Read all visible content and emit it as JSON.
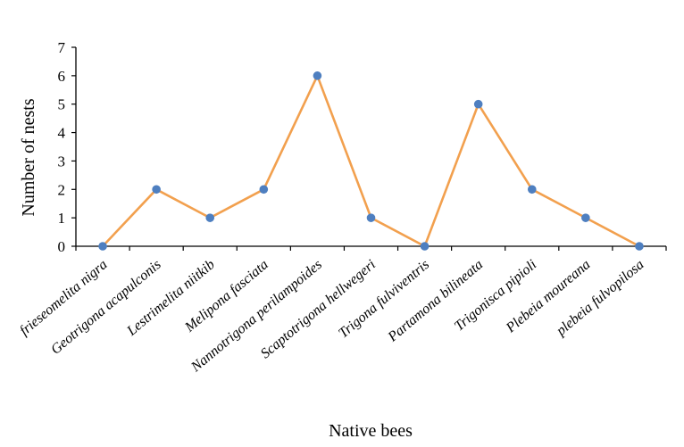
{
  "chart_data": {
    "type": "line",
    "categories": [
      "frieseomelita nigra",
      "Geotrigona acapulconis",
      "Lestrimelita niitkib",
      "Melipona fasciata",
      "Nannotrigona perilampoides",
      "Scaptotrigona hellwegeri",
      "Trigona fulviventris",
      "Partamona bilineata",
      "Trigonisca pipioli",
      "Plebeia moureana",
      "plebeia fulvopilosa"
    ],
    "series": [
      {
        "values": [
          0,
          2,
          1,
          2,
          6,
          1,
          0,
          5,
          2,
          1,
          0
        ]
      }
    ],
    "xlabel": "Native bees",
    "ylabel": "Number of nests",
    "ylim": [
      0,
      7
    ],
    "yticks": [
      "0",
      "1",
      "2",
      "3",
      "4",
      "5",
      "6",
      "7"
    ],
    "grid": false,
    "legend": "none",
    "colors": {
      "line": "#F2A04E",
      "marker": "#4E7FC0",
      "axis": "#000000"
    }
  }
}
